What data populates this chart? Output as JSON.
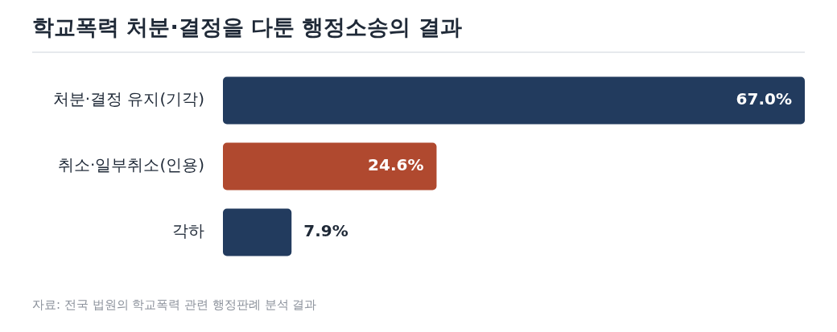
{
  "chart_data": {
    "type": "bar",
    "title": "학교폭력 처분·결정을 다툰 행정소송의 결과",
    "orientation": "horizontal",
    "categories": [
      "처분·결정 유지(기각)",
      "취소·일부취소(인용)",
      "각하"
    ],
    "values": [
      67.0,
      24.6,
      7.9
    ],
    "colors": [
      "#223b5e",
      "#b0492f",
      "#223b5e"
    ],
    "value_labels": [
      "67.0%",
      "24.6%",
      "7.9%"
    ],
    "annotations": [
      "자료: 전국 법원의 학교폭력 관련 행정판례 분석 결과"
    ]
  }
}
